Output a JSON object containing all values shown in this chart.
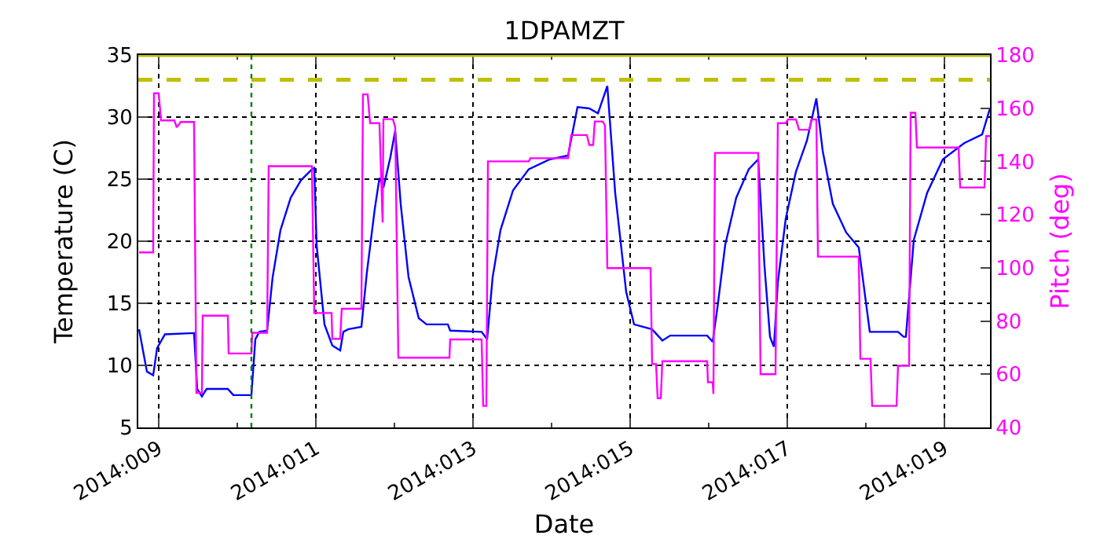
{
  "chart_data": {
    "type": "line",
    "title": "1DPAMZT",
    "xlabel": "Date",
    "ylabel": "Temperature (C)",
    "y2label": "Pitch (deg)",
    "xlim": [
      "2014-01-08T17:46",
      "2014-01-19T13:55"
    ],
    "xticks": [
      {
        "value": "2014-01-09",
        "label": "2014:009"
      },
      {
        "value": "2014-01-10",
        "label": null
      },
      {
        "value": "2014-01-11",
        "label": "2014:011"
      },
      {
        "value": "2014-01-12",
        "label": null
      },
      {
        "value": "2014-01-13",
        "label": "2014:013"
      },
      {
        "value": "2014-01-14",
        "label": null
      },
      {
        "value": "2014-01-15",
        "label": "2014:015"
      },
      {
        "value": "2014-01-16",
        "label": null
      },
      {
        "value": "2014-01-17",
        "label": "2014:017"
      },
      {
        "value": "2014-01-18",
        "label": null
      },
      {
        "value": "2014-01-19",
        "label": "2014:019"
      }
    ],
    "ylim": [
      5,
      35
    ],
    "yticks": [
      5,
      10,
      15,
      20,
      25,
      30,
      35
    ],
    "y2lim": [
      40,
      180
    ],
    "y2ticks": [
      40,
      60,
      80,
      100,
      120,
      140,
      160,
      180
    ],
    "grid": true,
    "marker": "none",
    "line_style": "solid",
    "series": [
      {
        "color": "#0000ff",
        "x": [
          "2014-01-08T18:00",
          "2014-01-08T20:24",
          "2014-01-08T22:19",
          "2014-01-08T23:31",
          "2014-01-09T01:55",
          "2014-01-09T10:48",
          "2014-01-09T11:46",
          "2014-01-09T13:12",
          "2014-01-09T14:38",
          "2014-01-09T21:07",
          "2014-01-09T22:48",
          "2014-01-10T04:19",
          "2014-01-10T05:31",
          "2014-01-10T06:43",
          "2014-01-10T09:07",
          "2014-01-10T10:48",
          "2014-01-10T13:12",
          "2014-01-10T16:19",
          "2014-01-10T19:26",
          "2014-01-10T22:48",
          "2014-01-10T23:31",
          "2014-01-11T00:14",
          "2014-01-11T02:38",
          "2014-01-11T05:02",
          "2014-01-11T07:26",
          "2014-01-11T08:24",
          "2014-01-11T09:50",
          "2014-01-11T13:55",
          "2014-01-11T15:36",
          "2014-01-11T18:00",
          "2014-01-11T19:26",
          "2014-01-11T20:38",
          "2014-01-11T22:48",
          "2014-01-12T00:14",
          "2014-01-12T01:55",
          "2014-01-12T04:19",
          "2014-01-12T07:26",
          "2014-01-12T09:50",
          "2014-01-12T16:19",
          "2014-01-12T17:02",
          "2014-01-13T02:38",
          "2014-01-13T04:19",
          "2014-01-13T06:00",
          "2014-01-13T08:24",
          "2014-01-13T12:14",
          "2014-01-13T17:02",
          "2014-01-13T23:31",
          "2014-01-14T05:02",
          "2014-01-14T07:55",
          "2014-01-14T11:31",
          "2014-01-14T14:10",
          "2014-01-14T17:02",
          "2014-01-14T19:26",
          "2014-01-14T22:48",
          "2014-01-15T01:12",
          "2014-01-15T06:43",
          "2014-01-15T09:50",
          "2014-01-15T12:14",
          "2014-01-15T23:31",
          "2014-01-16T01:12",
          "2014-01-16T02:38",
          "2014-01-16T05:02",
          "2014-01-16T08:24",
          "2014-01-16T12:14",
          "2014-01-16T15:07",
          "2014-01-16T17:02",
          "2014-01-16T18:43",
          "2014-01-16T19:55",
          "2014-01-16T21:07",
          "2014-01-16T23:31",
          "2014-01-17T02:38",
          "2014-01-17T06:00",
          "2014-01-17T08:53",
          "2014-01-17T10:48",
          "2014-01-17T13:55",
          "2014-01-17T18:00",
          "2014-01-17T21:50",
          "2014-01-18T01:12",
          "2014-01-18T04:19",
          "2014-01-18T09:50",
          "2014-01-18T11:31",
          "2014-01-18T12:14",
          "2014-01-18T14:38",
          "2014-01-18T18:43",
          "2014-01-18T23:31",
          "2014-01-19T06:00",
          "2014-01-19T11:31",
          "2014-01-19T13:55"
        ],
        "values": [
          12.9,
          9.5,
          9.2,
          11.4,
          12.5,
          12.6,
          8.1,
          7.5,
          8.1,
          8.1,
          7.6,
          7.6,
          12.1,
          12.7,
          12.8,
          17.1,
          20.9,
          23.5,
          24.9,
          25.8,
          25.9,
          19.7,
          13.3,
          11.6,
          11.2,
          12.7,
          12.9,
          13.1,
          17.5,
          22.6,
          25.1,
          24.3,
          26.8,
          28.9,
          23.0,
          17.1,
          13.8,
          13.3,
          13.3,
          12.8,
          12.7,
          12.1,
          17.1,
          20.9,
          24.1,
          25.8,
          26.6,
          26.9,
          30.8,
          30.7,
          30.3,
          32.5,
          23.9,
          15.9,
          13.3,
          12.9,
          12.0,
          12.4,
          12.4,
          11.9,
          14.6,
          19.7,
          23.5,
          25.8,
          26.6,
          18.0,
          12.3,
          11.5,
          16.7,
          21.8,
          25.6,
          28.1,
          31.5,
          27.3,
          23.0,
          20.7,
          19.5,
          12.7,
          12.7,
          12.7,
          12.3,
          12.3,
          20.1,
          23.9,
          26.6,
          27.9,
          28.6,
          30.7
        ]
      },
      {
        "color": "#ff00ff",
        "axis": "y2",
        "x": [
          "2014-01-08T18:00",
          "2014-01-08T22:19",
          "2014-01-08T22:34",
          "2014-01-09T00:00",
          "2014-01-09T00:43",
          "2014-01-09T04:48",
          "2014-01-09T05:31",
          "2014-01-09T06:43",
          "2014-01-09T10:48",
          "2014-01-09T11:31",
          "2014-01-09T13:12",
          "2014-01-09T13:26",
          "2014-01-09T21:07",
          "2014-01-09T21:22",
          "2014-01-10T04:19",
          "2014-01-10T04:34",
          "2014-01-10T09:07",
          "2014-01-10T09:36",
          "2014-01-10T22:48",
          "2014-01-10T23:31",
          "2014-01-11T04:48",
          "2014-01-11T05:02",
          "2014-01-11T07:26",
          "2014-01-11T07:55",
          "2014-01-11T13:55",
          "2014-01-11T14:24",
          "2014-01-11T15:50",
          "2014-01-11T16:34",
          "2014-01-11T19:26",
          "2014-01-11T20:24",
          "2014-01-11T20:38",
          "2014-01-11T23:31",
          "2014-01-12T00:14",
          "2014-01-12T01:12",
          "2014-01-12T16:48",
          "2014-01-12T17:02",
          "2014-01-13T02:38",
          "2014-01-13T03:07",
          "2014-01-13T04:05",
          "2014-01-13T04:34",
          "2014-01-13T17:02",
          "2014-01-13T17:31",
          "2014-01-14T05:02",
          "2014-01-14T06:00",
          "2014-01-14T10:48",
          "2014-01-14T11:31",
          "2014-01-14T12:43",
          "2014-01-14T13:12",
          "2014-01-14T15:36",
          "2014-01-14T16:19",
          "2014-01-14T17:02",
          "2014-01-15T06:14",
          "2014-01-15T06:43",
          "2014-01-15T07:55",
          "2014-01-15T08:24",
          "2014-01-15T09:22",
          "2014-01-15T09:50",
          "2014-01-15T23:31",
          "2014-01-15T23:46",
          "2014-01-16T01:12",
          "2014-01-16T01:26",
          "2014-01-16T01:55",
          "2014-01-16T15:07",
          "2014-01-16T15:50",
          "2014-01-16T20:24",
          "2014-01-16T21:07",
          "2014-01-16T23:31",
          "2014-01-17T00:14",
          "2014-01-17T02:38",
          "2014-01-17T03:36",
          "2014-01-17T06:43",
          "2014-01-17T07:26",
          "2014-01-17T08:53",
          "2014-01-17T09:22",
          "2014-01-17T21:50",
          "2014-01-17T22:19",
          "2014-01-18T01:26",
          "2014-01-18T01:55",
          "2014-01-18T09:22",
          "2014-01-18T09:50",
          "2014-01-18T13:12",
          "2014-01-18T13:41",
          "2014-01-18T15:07",
          "2014-01-18T15:36",
          "2014-01-19T04:19",
          "2014-01-19T04:48",
          "2014-01-19T12:14",
          "2014-01-19T12:43",
          "2014-01-19T13:55"
        ],
        "values": [
          105.8,
          105.8,
          165.6,
          165.6,
          155.4,
          155.4,
          152.8,
          154.8,
          154.8,
          53.0,
          53.0,
          82.0,
          82.0,
          67.8,
          67.8,
          75.6,
          75.6,
          138.2,
          138.2,
          83.0,
          83.0,
          73.3,
          73.3,
          84.6,
          84.6,
          165.2,
          165.2,
          154.4,
          154.4,
          117.0,
          155.9,
          155.9,
          153.0,
          66.2,
          66.2,
          73.1,
          73.1,
          48.1,
          48.1,
          140.0,
          140.0,
          141.2,
          141.2,
          149.9,
          149.9,
          146.2,
          146.2,
          155.0,
          155.0,
          153.5,
          99.9,
          99.9,
          63.8,
          63.8,
          51.0,
          51.0,
          64.9,
          64.9,
          57.0,
          57.0,
          52.6,
          143.2,
          143.2,
          60.0,
          60.0,
          154.4,
          154.4,
          155.8,
          155.8,
          151.9,
          151.9,
          155.8,
          155.8,
          104.2,
          104.2,
          65.8,
          65.8,
          48.1,
          48.1,
          63.2,
          63.2,
          158.3,
          158.3,
          145.2,
          145.2,
          130.2,
          130.2,
          149.5,
          149.5
        ]
      }
    ],
    "ref_lines": [
      {
        "axis": "y",
        "value": 33,
        "color": "#bfbf00",
        "line_style": "dashed"
      },
      {
        "axis": "y",
        "value": 35,
        "color": "#bfbf00",
        "line_style": "solid"
      },
      {
        "axis": "x",
        "value": "2014-01-10T04:19",
        "color": "#008000",
        "line_style": "dotted"
      }
    ]
  }
}
